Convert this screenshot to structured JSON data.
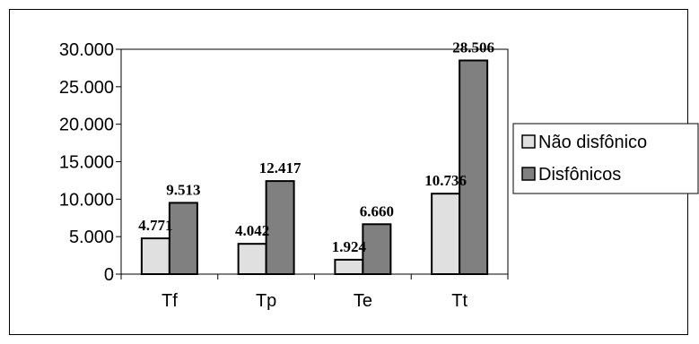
{
  "chart_data": {
    "type": "bar",
    "title": "",
    "xlabel": "",
    "ylabel": "",
    "categories": [
      "Tf",
      "Tp",
      "Te",
      "Tt"
    ],
    "series": [
      {
        "name": "Não disfônico",
        "values": [
          4771,
          4042,
          1924,
          10736
        ],
        "labels": [
          "4.771",
          "4.042",
          "1.924",
          "10.736"
        ],
        "color": "#e0e0e0"
      },
      {
        "name": "Disfônicos",
        "values": [
          9513,
          12417,
          6660,
          28506
        ],
        "labels": [
          "9.513",
          "12.417",
          "6.660",
          "28.506"
        ],
        "color": "#808080"
      }
    ],
    "ylim": [
      0,
      30000
    ],
    "yticks": [
      0,
      5000,
      10000,
      15000,
      20000,
      25000,
      30000
    ],
    "ytick_labels": [
      "0",
      "5.000",
      "10.000",
      "15.000",
      "20.000",
      "25.000",
      "30.000"
    ],
    "grid": false,
    "legend_position": "right"
  }
}
